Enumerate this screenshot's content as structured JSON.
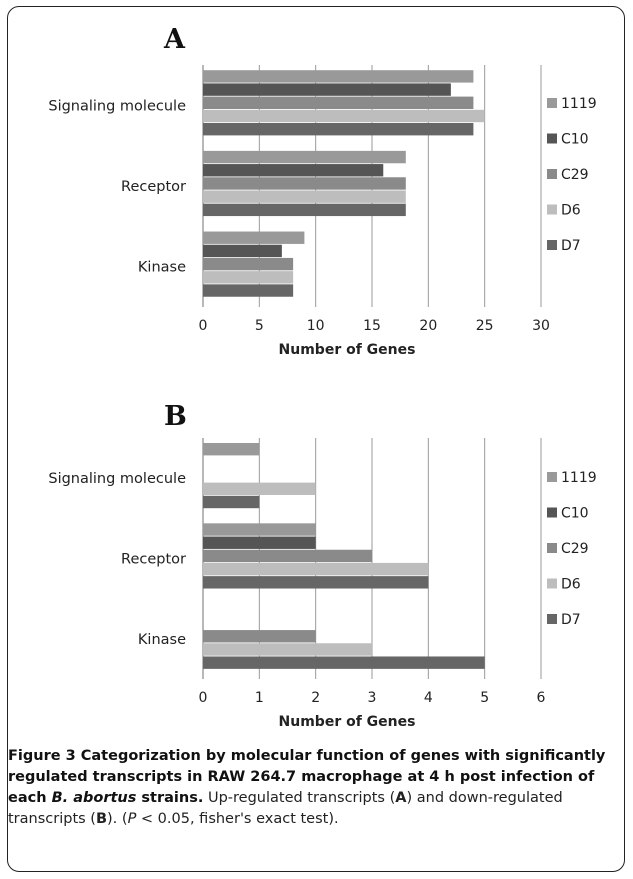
{
  "chart_data": [
    {
      "type": "bar",
      "orientation": "horizontal",
      "panel": "A",
      "categories": [
        "Signaling molecule",
        "Receptor",
        "Kinase"
      ],
      "series": [
        {
          "name": "1119",
          "values": [
            24,
            18,
            9
          ]
        },
        {
          "name": "C10",
          "values": [
            22,
            16,
            7
          ]
        },
        {
          "name": "C29",
          "values": [
            24,
            18,
            8
          ]
        },
        {
          "name": "D6",
          "values": [
            25,
            18,
            8
          ]
        },
        {
          "name": "D7",
          "values": [
            24,
            18,
            8
          ]
        }
      ],
      "xlabel": "Number of Genes",
      "xlim": [
        0,
        30
      ],
      "xticks": [
        0,
        5,
        10,
        15,
        20,
        25,
        30
      ],
      "grid": "vertical",
      "legend": "right"
    },
    {
      "type": "bar",
      "orientation": "horizontal",
      "panel": "B",
      "categories": [
        "Signaling molecule",
        "Receptor",
        "Kinase"
      ],
      "series": [
        {
          "name": "1119",
          "values": [
            1,
            2,
            0
          ]
        },
        {
          "name": "C10",
          "values": [
            0,
            2,
            0
          ]
        },
        {
          "name": "C29",
          "values": [
            0,
            3,
            2
          ]
        },
        {
          "name": "D6",
          "values": [
            2,
            4,
            3
          ]
        },
        {
          "name": "D7",
          "values": [
            1,
            4,
            5
          ]
        }
      ],
      "xlabel": "Number of Genes",
      "xlim": [
        0,
        6
      ],
      "xticks": [
        0,
        1,
        2,
        3,
        4,
        5,
        6
      ],
      "grid": "vertical",
      "legend": "right"
    }
  ],
  "colors": {
    "1119": "#999999",
    "C10": "#555555",
    "C29": "#8a8a8a",
    "D6": "#bdbdbd",
    "D7": "#666666",
    "grid": "#9a9a9a",
    "axis": "#888888",
    "frame": "#222222"
  },
  "caption": {
    "title": "Figure 3 Categorization by molecular function of genes with significantly regulated transcripts in RAW 264.7 macrophage at 4 h post infection of each ",
    "title_italic": "B. abortus",
    "title_end": " strains.",
    "body_1": " Up-regulated transcripts (",
    "ref_a": "A",
    "body_2": ") and down-regulated transcripts (",
    "ref_b": "B",
    "body_3": "). (",
    "p_italic": "P",
    "body_4": " < 0.05, fisher's exact test)."
  }
}
